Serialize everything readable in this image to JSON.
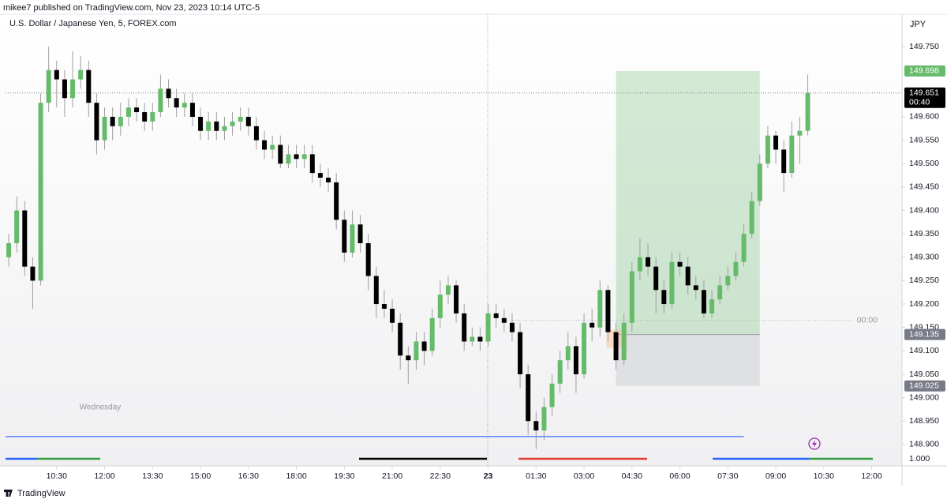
{
  "chart_data": {
    "type": "candlestick",
    "published": "mikee7 published on TradingView.com, Nov 23, 2023 10:14 UTC-5",
    "title": "U.S. Dollar / Japanese Yen, 5, FOREX.com",
    "currency": "JPY",
    "day_label": "Wednesday",
    "up_color": "#66bb6a",
    "down_color": "#000000",
    "open": [
      149.3,
      149.33,
      149.4,
      149.28,
      149.25,
      149.63,
      149.7,
      149.68,
      149.64,
      149.68,
      149.7,
      149.63,
      149.55,
      149.6,
      149.58,
      149.6,
      149.62,
      149.61,
      149.59,
      149.61,
      149.66,
      149.64,
      149.62,
      149.63,
      149.6,
      149.57,
      149.59,
      149.57,
      149.58,
      149.59,
      149.6,
      149.58,
      149.55,
      149.53,
      149.54,
      149.5,
      149.52,
      149.51,
      149.52,
      149.48,
      149.47,
      149.46,
      149.38,
      149.31,
      149.37,
      149.33,
      149.26,
      149.2,
      149.19,
      149.16,
      149.09,
      149.08,
      149.12,
      149.1,
      149.17,
      149.22,
      149.24,
      149.18,
      149.12,
      149.13,
      149.12,
      149.18,
      149.17,
      149.16,
      149.14,
      149.05,
      148.95,
      148.93,
      148.98,
      149.03,
      149.08,
      149.11,
      149.05,
      149.16,
      149.15,
      149.23,
      149.14,
      149.08,
      149.16,
      149.27,
      149.3,
      149.28,
      149.23,
      149.2,
      149.29,
      149.28,
      149.24,
      149.23,
      149.18,
      149.21,
      149.24,
      149.26,
      149.29,
      149.35,
      149.42,
      149.5,
      149.56,
      149.53,
      149.48,
      149.56,
      149.57
    ],
    "high": [
      149.35,
      149.43,
      149.42,
      149.3,
      149.65,
      149.75,
      149.72,
      149.7,
      149.74,
      149.73,
      149.72,
      149.65,
      149.62,
      149.62,
      149.63,
      149.64,
      149.64,
      149.63,
      149.63,
      149.69,
      149.68,
      149.66,
      149.65,
      149.65,
      149.62,
      149.61,
      149.61,
      149.6,
      149.61,
      149.62,
      149.62,
      149.6,
      149.57,
      149.56,
      149.56,
      149.54,
      149.54,
      149.54,
      149.54,
      149.5,
      149.49,
      149.48,
      149.4,
      149.4,
      149.39,
      149.35,
      149.28,
      149.23,
      149.21,
      149.18,
      149.11,
      149.14,
      149.14,
      149.19,
      149.25,
      149.26,
      149.25,
      149.2,
      149.15,
      149.15,
      149.2,
      149.2,
      149.19,
      149.18,
      149.16,
      149.07,
      148.97,
      149.0,
      149.05,
      149.1,
      149.14,
      149.13,
      149.18,
      149.19,
      149.25,
      149.24,
      149.16,
      149.18,
      149.29,
      149.34,
      149.33,
      149.3,
      149.25,
      149.31,
      149.31,
      149.3,
      149.26,
      149.25,
      149.23,
      149.26,
      149.28,
      149.31,
      149.37,
      149.44,
      149.52,
      149.58,
      149.57,
      149.55,
      149.59,
      149.6,
      149.69
    ],
    "low": [
      149.28,
      149.31,
      149.26,
      149.19,
      149.24,
      149.61,
      149.62,
      149.6,
      149.62,
      149.66,
      149.6,
      149.52,
      149.53,
      149.55,
      149.56,
      149.58,
      149.59,
      149.57,
      149.57,
      149.6,
      149.62,
      149.6,
      149.6,
      149.58,
      149.55,
      149.55,
      149.55,
      149.55,
      149.56,
      149.57,
      149.56,
      149.53,
      149.51,
      149.51,
      149.49,
      149.49,
      149.49,
      149.49,
      149.46,
      149.45,
      149.44,
      149.36,
      149.29,
      149.3,
      149.31,
      149.23,
      149.17,
      149.17,
      149.14,
      149.06,
      149.03,
      149.06,
      149.07,
      149.09,
      149.15,
      149.2,
      149.16,
      149.1,
      149.11,
      149.1,
      149.11,
      149.15,
      149.14,
      149.12,
      149.02,
      148.92,
      148.89,
      148.91,
      148.96,
      149.01,
      149.06,
      149.01,
      149.04,
      149.12,
      149.13,
      149.12,
      149.06,
      149.07,
      149.14,
      149.25,
      149.26,
      149.18,
      149.18,
      149.19,
      149.26,
      149.22,
      149.21,
      149.17,
      149.17,
      149.2,
      149.23,
      149.25,
      149.28,
      149.34,
      149.41,
      149.49,
      149.5,
      149.44,
      149.47,
      149.5,
      149.56
    ],
    "close": [
      149.33,
      149.4,
      149.28,
      149.25,
      149.63,
      149.7,
      149.68,
      149.64,
      149.68,
      149.7,
      149.63,
      149.55,
      149.6,
      149.58,
      149.6,
      149.62,
      149.61,
      149.59,
      149.61,
      149.66,
      149.64,
      149.62,
      149.63,
      149.6,
      149.57,
      149.59,
      149.57,
      149.58,
      149.59,
      149.6,
      149.58,
      149.55,
      149.53,
      149.54,
      149.5,
      149.52,
      149.51,
      149.52,
      149.48,
      149.47,
      149.46,
      149.38,
      149.31,
      149.37,
      149.33,
      149.26,
      149.2,
      149.19,
      149.16,
      149.09,
      149.08,
      149.12,
      149.1,
      149.17,
      149.22,
      149.24,
      149.18,
      149.12,
      149.13,
      149.12,
      149.18,
      149.17,
      149.16,
      149.14,
      149.05,
      148.95,
      148.93,
      148.98,
      149.03,
      149.08,
      149.11,
      149.05,
      149.16,
      149.15,
      149.23,
      149.14,
      149.08,
      149.16,
      149.27,
      149.3,
      149.28,
      149.23,
      149.2,
      149.29,
      149.28,
      149.24,
      149.23,
      149.18,
      149.21,
      149.24,
      149.26,
      149.29,
      149.35,
      149.42,
      149.5,
      149.56,
      149.53,
      149.48,
      149.56,
      149.57,
      149.651
    ],
    "xlim": [
      -0.4,
      111.5
    ],
    "xticks": [
      {
        "value": 6,
        "label": "10:30"
      },
      {
        "value": 12,
        "label": "12:00"
      },
      {
        "value": 18,
        "label": "13:30"
      },
      {
        "value": 24,
        "label": "15:00"
      },
      {
        "value": 30,
        "label": "16:30"
      },
      {
        "value": 36,
        "label": "18:00"
      },
      {
        "value": 42,
        "label": "19:30"
      },
      {
        "value": 48,
        "label": "21:00"
      },
      {
        "value": 54,
        "label": "22:30"
      },
      {
        "value": 60,
        "label": "23"
      },
      {
        "value": 66,
        "label": "01:30"
      },
      {
        "value": 72,
        "label": "03:00"
      },
      {
        "value": 78,
        "label": "04:30"
      },
      {
        "value": 84,
        "label": "06:00"
      },
      {
        "value": 90,
        "label": "07:30"
      },
      {
        "value": 96,
        "label": "09:00"
      },
      {
        "value": 102,
        "label": "10:30"
      },
      {
        "value": 108,
        "label": "12:00"
      }
    ],
    "ylim": [
      148.888,
      149.799
    ],
    "yticks": [
      {
        "value": 149.75,
        "label": "149.750"
      },
      {
        "value": 149.6,
        "label": "149.600"
      },
      {
        "value": 149.55,
        "label": "149.550"
      },
      {
        "value": 149.5,
        "label": "149.500"
      },
      {
        "value": 149.45,
        "label": "149.450"
      },
      {
        "value": 149.4,
        "label": "149.400"
      },
      {
        "value": 149.35,
        "label": "149.350"
      },
      {
        "value": 149.3,
        "label": "149.300"
      },
      {
        "value": 149.25,
        "label": "149.250"
      },
      {
        "value": 149.2,
        "label": "149.200"
      },
      {
        "value": 149.15,
        "label": "149.150"
      },
      {
        "value": 149.1,
        "label": "149.100"
      },
      {
        "value": 149.05,
        "label": "149.050"
      },
      {
        "value": 149,
        "label": "149.000"
      },
      {
        "value": 148.95,
        "label": "148.950"
      },
      {
        "value": 148.9,
        "label": "148.900"
      }
    ],
    "last_price": {
      "value": 149.651,
      "label": "149.651",
      "countdown": "00:40"
    },
    "position": {
      "from": 76,
      "to": 94,
      "levels": [
        149.698,
        149.135,
        149.025
      ],
      "value_labels": [
        "149.698",
        "149.135",
        "149.025"
      ]
    },
    "hline": {
      "value": 148.917,
      "to": 92,
      "color": "#2962ff"
    },
    "session_line": {
      "value": 149.165,
      "label": "00:00"
    },
    "indicator": "1.000"
  },
  "footer": "TradingView"
}
